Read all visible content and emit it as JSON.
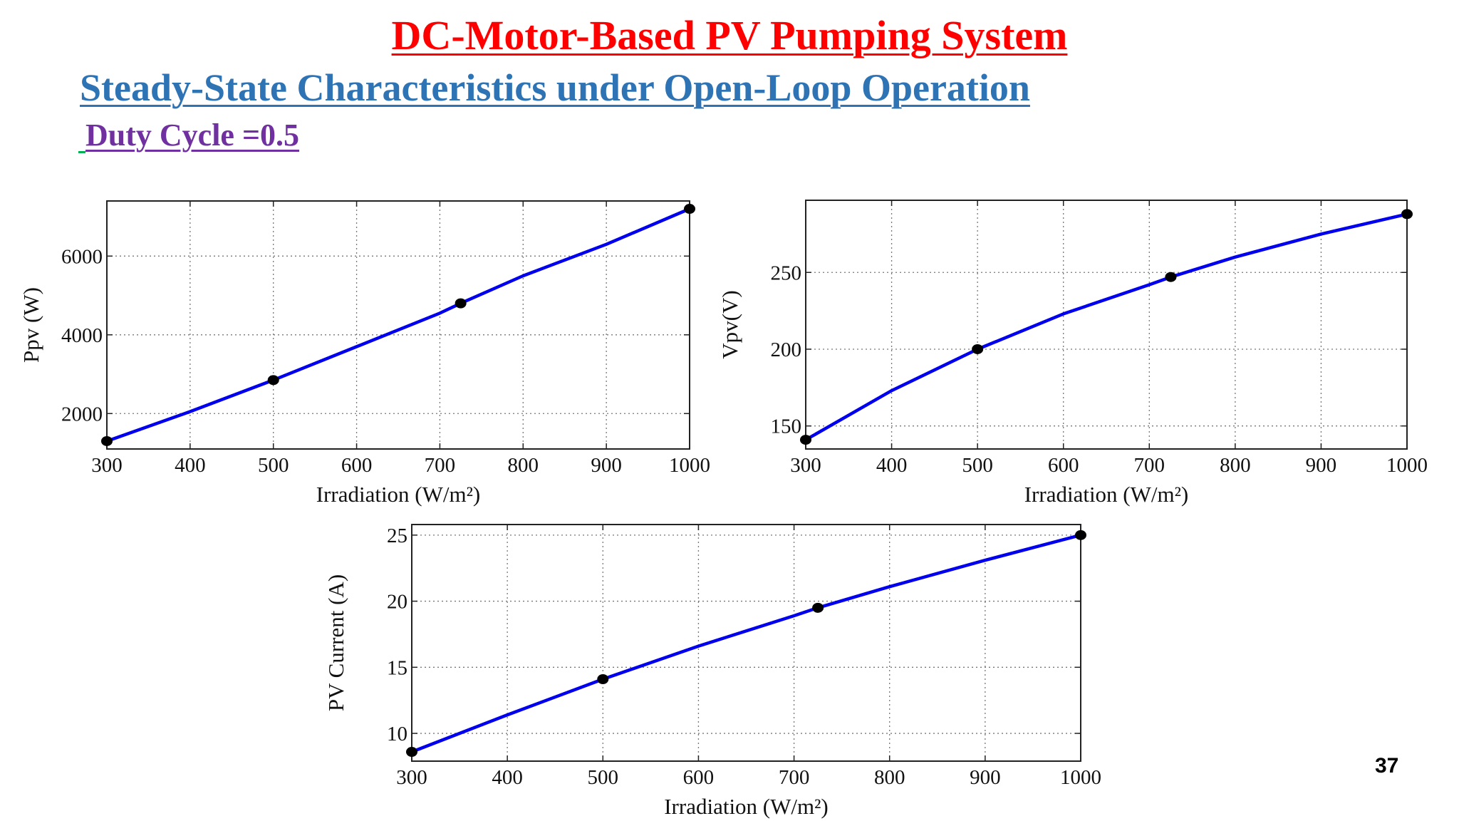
{
  "slide": {
    "title": "DC-Motor-Based PV Pumping System",
    "subtitle": "Steady-State Characteristics under Open-Loop Operation",
    "duty": "Duty Cycle =0.5",
    "page_number": "37"
  },
  "colors": {
    "line": "#0000ee",
    "marker": "#000000",
    "title": "#ff0000",
    "subtitle": "#2e74b5",
    "duty": "#7030a0"
  },
  "chart_data": [
    {
      "type": "line",
      "xlabel": "Irradiation (W/m²)",
      "ylabel": "Ppv (W)",
      "xlim": [
        300,
        1000
      ],
      "ylim": [
        1100,
        7400
      ],
      "xticks": [
        300,
        400,
        500,
        600,
        700,
        800,
        900,
        1000
      ],
      "yticks": [
        2000,
        4000,
        6000
      ],
      "grid": true,
      "series": [
        {
          "x": [
            300,
            400,
            500,
            600,
            700,
            725,
            800,
            900,
            1000
          ],
          "y": [
            1300,
            2050,
            2850,
            3700,
            4550,
            4800,
            5500,
            6300,
            7200
          ]
        }
      ],
      "markers": {
        "x": [
          300,
          500,
          725,
          1000
        ],
        "y": [
          1300,
          2850,
          4800,
          7200
        ]
      }
    },
    {
      "type": "line",
      "xlabel": "Irradiation (W/m²)",
      "ylabel": "Vpv(V)",
      "xlim": [
        300,
        1000
      ],
      "ylim": [
        135,
        297
      ],
      "xticks": [
        300,
        400,
        500,
        600,
        700,
        800,
        900,
        1000
      ],
      "yticks": [
        150,
        200,
        250
      ],
      "grid": true,
      "series": [
        {
          "x": [
            300,
            400,
            500,
            600,
            700,
            725,
            800,
            900,
            1000
          ],
          "y": [
            141,
            173,
            200,
            223,
            242,
            247,
            260,
            275,
            288
          ]
        }
      ],
      "markers": {
        "x": [
          300,
          500,
          725,
          1000
        ],
        "y": [
          141,
          200,
          247,
          288
        ]
      }
    },
    {
      "type": "line",
      "xlabel": "Irradiation (W/m²)",
      "ylabel": "PV Current (A)",
      "xlim": [
        300,
        1000
      ],
      "ylim": [
        7.9,
        25.8
      ],
      "xticks": [
        300,
        400,
        500,
        600,
        700,
        800,
        900,
        1000
      ],
      "yticks": [
        10,
        15,
        20,
        25
      ],
      "grid": true,
      "series": [
        {
          "x": [
            300,
            400,
            500,
            600,
            700,
            725,
            800,
            900,
            1000
          ],
          "y": [
            8.6,
            11.4,
            14.1,
            16.6,
            18.9,
            19.5,
            21.1,
            23.1,
            25.0
          ]
        }
      ],
      "markers": {
        "x": [
          300,
          500,
          725,
          1000
        ],
        "y": [
          8.6,
          14.1,
          19.5,
          25.0
        ]
      }
    }
  ]
}
